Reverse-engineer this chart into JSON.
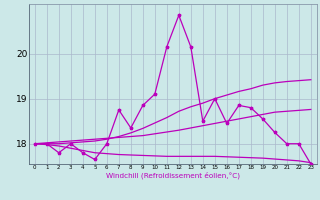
{
  "xlabel": "Windchill (Refroidissement éolien,°C)",
  "background_color": "#cce8e8",
  "grid_color": "#aab8cc",
  "line_color": "#bb00bb",
  "hours": [
    0,
    1,
    2,
    3,
    4,
    5,
    6,
    7,
    8,
    9,
    10,
    11,
    12,
    13,
    14,
    15,
    16,
    17,
    18,
    19,
    20,
    21,
    22,
    23
  ],
  "main_data": [
    18.0,
    18.0,
    17.8,
    18.0,
    17.8,
    17.65,
    18.0,
    18.75,
    18.35,
    18.85,
    19.1,
    20.15,
    20.85,
    20.15,
    18.5,
    19.0,
    18.45,
    18.85,
    18.8,
    18.55,
    18.25,
    18.0,
    18.0,
    17.55
  ],
  "mean_line": [
    18.0,
    18.02,
    18.04,
    18.06,
    18.08,
    18.1,
    18.12,
    18.14,
    18.16,
    18.18,
    18.22,
    18.26,
    18.3,
    18.35,
    18.4,
    18.45,
    18.5,
    18.55,
    18.6,
    18.65,
    18.7,
    18.72,
    18.74,
    18.76
  ],
  "max_line": [
    18.0,
    18.0,
    18.0,
    18.02,
    18.04,
    18.06,
    18.1,
    18.16,
    18.24,
    18.34,
    18.46,
    18.58,
    18.72,
    18.82,
    18.9,
    19.0,
    19.08,
    19.16,
    19.22,
    19.3,
    19.35,
    19.38,
    19.4,
    19.42
  ],
  "min_line": [
    18.0,
    17.98,
    17.95,
    17.9,
    17.85,
    17.8,
    17.78,
    17.76,
    17.75,
    17.74,
    17.73,
    17.72,
    17.72,
    17.72,
    17.72,
    17.72,
    17.71,
    17.7,
    17.69,
    17.68,
    17.66,
    17.64,
    17.62,
    17.58
  ],
  "ylim": [
    17.55,
    21.1
  ],
  "yticks": [
    18,
    19,
    20
  ],
  "xlim": [
    -0.5,
    23.5
  ]
}
